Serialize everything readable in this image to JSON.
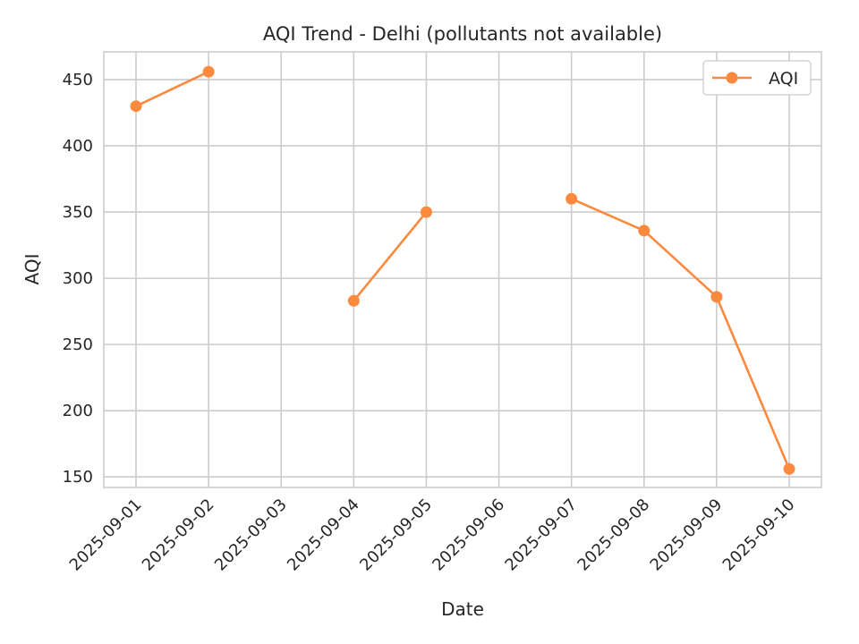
{
  "chart_data": {
    "type": "line",
    "title": "AQI Trend - Delhi (pollutants not available)",
    "xlabel": "Date",
    "ylabel": "AQI",
    "x": [
      "2025-09-01",
      "2025-09-02",
      "2025-09-03",
      "2025-09-04",
      "2025-09-05",
      "2025-09-06",
      "2025-09-07",
      "2025-09-08",
      "2025-09-09",
      "2025-09-10"
    ],
    "xticks": [
      "2025-09-01",
      "2025-09-02",
      "2025-09-03",
      "2025-09-04",
      "2025-09-05",
      "2025-09-06",
      "2025-09-07",
      "2025-09-08",
      "2025-09-09",
      "2025-09-10"
    ],
    "yticks": [
      150,
      200,
      250,
      300,
      350,
      400,
      450
    ],
    "ylim": [
      142,
      471
    ],
    "grid": true,
    "legend": "top-right",
    "series": [
      {
        "name": "AQI",
        "color": "#fb8a3f",
        "marker": "circle",
        "values": [
          430,
          456,
          null,
          283,
          350,
          null,
          360,
          336,
          286,
          156
        ]
      }
    ]
  }
}
